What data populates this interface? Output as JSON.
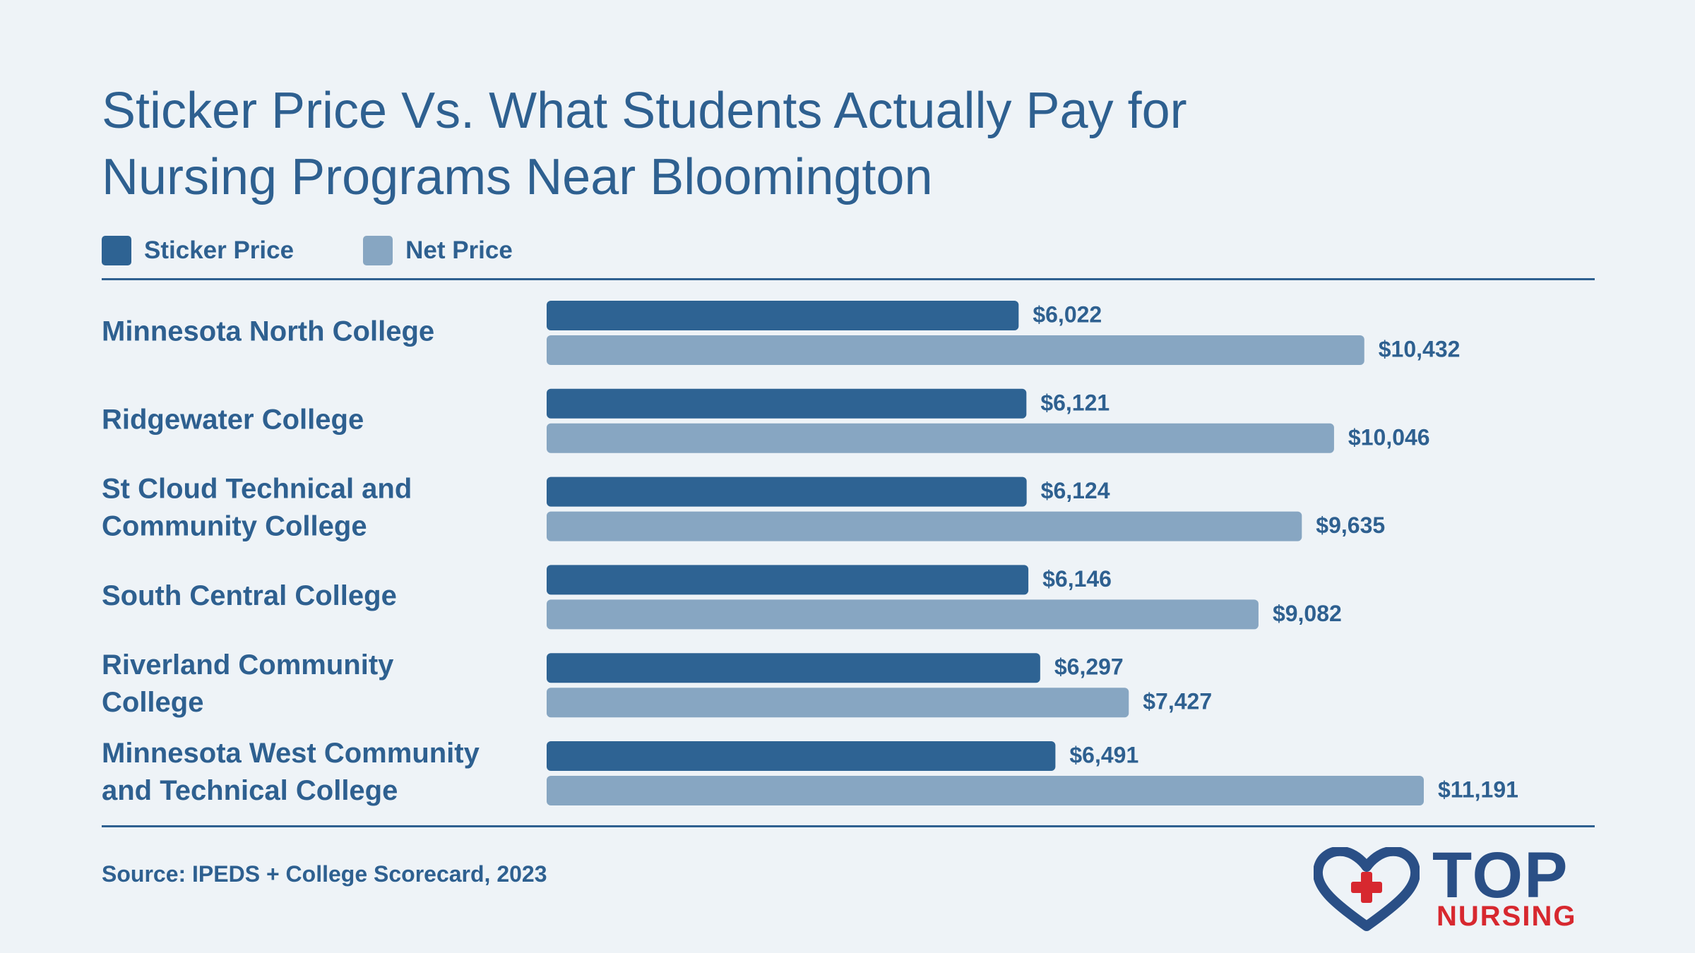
{
  "chart_data": {
    "type": "bar",
    "orientation": "horizontal",
    "title": "Sticker Price Vs. What Students Actually Pay for Nursing Programs Near Bloomington",
    "title_lines": [
      "Sticker Price Vs. What Students Actually Pay for",
      "Nursing Programs Near Bloomington"
    ],
    "categories": [
      [
        "Minnesota North College"
      ],
      [
        "Ridgewater College"
      ],
      [
        "St Cloud Technical and",
        "Community College"
      ],
      [
        "South Central College"
      ],
      [
        "Riverland Community",
        "College"
      ],
      [
        "Minnesota West Community",
        "and Technical College"
      ]
    ],
    "series": [
      {
        "name": "Sticker Price",
        "color": "#2e6393",
        "values": [
          6022,
          6121,
          6124,
          6146,
          6297,
          6491
        ],
        "labels": [
          "$6,022",
          "$6,121",
          "$6,124",
          "$6,146",
          "$6,297",
          "$6,491"
        ]
      },
      {
        "name": "Net Price",
        "color": "#87a6c2",
        "values": [
          10432,
          10046,
          9635,
          9082,
          7427,
          11191
        ],
        "labels": [
          "$10,432",
          "$10,046",
          "$9,635",
          "$9,082",
          "$7,427",
          "$11,191"
        ]
      }
    ],
    "xlim": [
      0,
      11191
    ],
    "grid": false,
    "legend": "top-left",
    "source": "Source: IPEDS + College Scorecard, 2023"
  },
  "logo": {
    "top": "TOP",
    "bottom": "NURSING",
    "heart_color": "#2a4f86",
    "cross_color": "#d7282f"
  }
}
